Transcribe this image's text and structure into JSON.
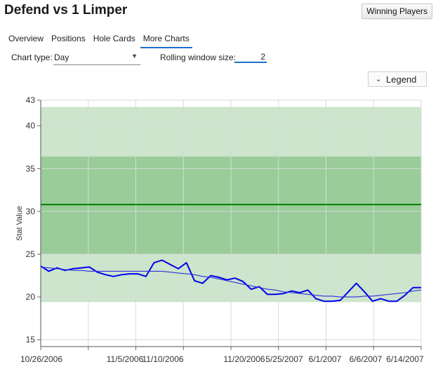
{
  "header": {
    "title": "Defend vs 1 Limper",
    "winning_players_label": "Winning Players"
  },
  "tabs": [
    {
      "label": "Overview"
    },
    {
      "label": "Positions"
    },
    {
      "label": "Hole Cards"
    },
    {
      "label": "More Charts",
      "active": true
    }
  ],
  "controls": {
    "chart_type_label": "Chart type:",
    "chart_type_value": "Day",
    "rolling_window_label": "Rolling window size:",
    "rolling_window_value": "2",
    "legend_label": "Legend"
  },
  "chart_data": {
    "type": "line",
    "ylabel": "Stat Value",
    "xlabel": "",
    "ylim": [
      14.2,
      43
    ],
    "yticks": [
      15,
      20,
      25,
      30,
      35,
      40,
      43
    ],
    "grid": true,
    "x_tick_labels": [
      "10/26/2006",
      "11/5/2006",
      "11/10/2006",
      "11/20/2006",
      "5/25/2007",
      "6/1/2007",
      "6/6/2007",
      "6/14/2007"
    ],
    "bands": [
      {
        "from": 19.4,
        "to": 42.2,
        "color": "#cce5cc"
      },
      {
        "from": 25.0,
        "to": 36.4,
        "color": "#99cc99"
      }
    ],
    "reference_line": {
      "value": 30.8,
      "color": "#008000"
    },
    "series": [
      {
        "color": "#0000ee",
        "values": [
          23.6,
          23.0,
          23.4,
          23.1,
          23.3,
          23.4,
          23.5,
          22.9,
          22.6,
          22.4,
          22.6,
          22.7,
          22.7,
          22.4,
          24.0,
          24.3,
          23.8,
          23.3,
          24.0,
          21.9,
          21.6,
          22.5,
          22.3,
          22.0,
          22.2,
          21.8,
          20.9,
          21.2,
          20.3,
          20.3,
          20.4,
          20.7,
          20.5,
          20.8,
          19.8,
          19.5,
          19.5,
          19.6,
          20.6,
          21.6,
          20.6,
          19.5,
          19.8,
          19.5,
          19.5,
          20.2,
          21.1,
          21.1
        ]
      },
      {
        "color": "#3030dd",
        "values": [
          23.5,
          23.4,
          23.3,
          23.2,
          23.1,
          23.1,
          23.0,
          23.0,
          23.0,
          23.0,
          23.0,
          23.0,
          23.0,
          23.0,
          23.0,
          23.0,
          22.9,
          22.8,
          22.7,
          22.6,
          22.4,
          22.3,
          22.1,
          21.9,
          21.7,
          21.5,
          21.3,
          21.1,
          20.9,
          20.8,
          20.6,
          20.5,
          20.4,
          20.3,
          20.2,
          20.1,
          20.1,
          20.0,
          20.0,
          20.0,
          20.1,
          20.1,
          20.2,
          20.3,
          20.4,
          20.5,
          20.7,
          20.8
        ]
      }
    ]
  }
}
